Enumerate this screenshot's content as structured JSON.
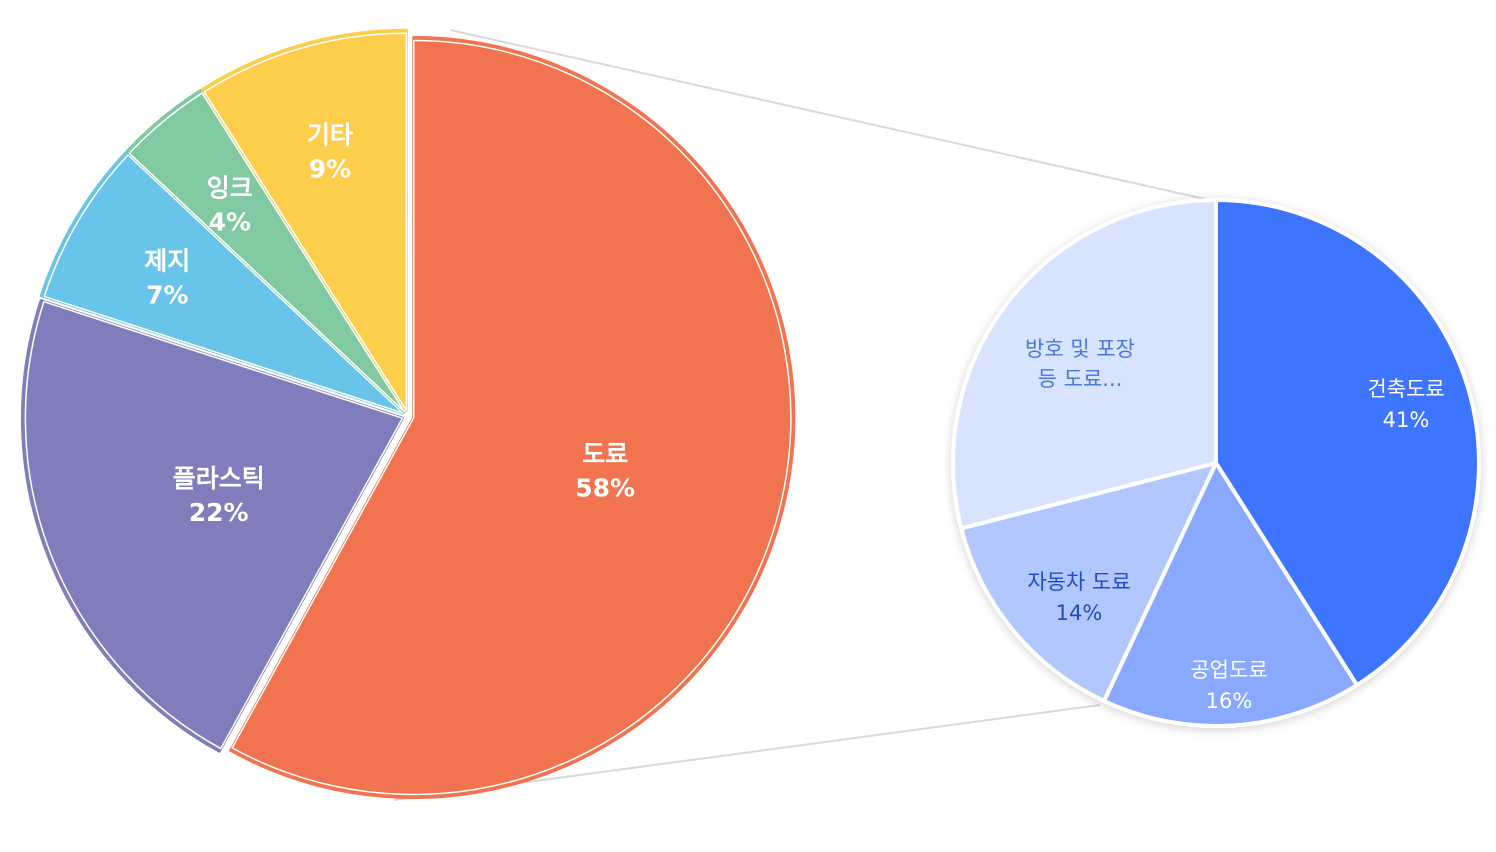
{
  "chart_data": [
    {
      "type": "pie",
      "title": "",
      "slices": [
        {
          "label": "도료",
          "value": 58,
          "pct_label": "58%",
          "color": "#F2734F",
          "text_color": "#ffffff"
        },
        {
          "label": "플라스틱",
          "value": 22,
          "pct_label": "22%",
          "color": "#7F7DBC",
          "text_color": "#ffffff"
        },
        {
          "label": "제지",
          "value": 7,
          "pct_label": "7%",
          "color": "#68C5E9",
          "text_color": "#ffffff"
        },
        {
          "label": "잉크",
          "value": 4,
          "pct_label": "4%",
          "color": "#80C9A1",
          "text_color": "#ffffff"
        },
        {
          "label": "기타",
          "value": 9,
          "pct_label": "9%",
          "color": "#FDCD4C",
          "text_color": "#ffffff"
        }
      ]
    },
    {
      "type": "pie",
      "title": "",
      "breakdown_of": "도료",
      "slices": [
        {
          "label": "건축도료",
          "value": 41,
          "pct_label": "41%",
          "color": "#3C75FE",
          "text_color": "#ffffff"
        },
        {
          "label": "공업도료",
          "value": 16,
          "pct_label": "16%",
          "color": "#89A9FE",
          "text_color": "#ffffff"
        },
        {
          "label": "자동차 도료",
          "value": 14,
          "pct_label": "14%",
          "color": "#B1C7FE",
          "text_color": "#1F4FC4"
        },
        {
          "label": "방호 및 포장 등 도료...",
          "value": 29,
          "pct_label": "",
          "color": "#D8E3FE",
          "text_color": "#4A78D6"
        }
      ]
    }
  ]
}
